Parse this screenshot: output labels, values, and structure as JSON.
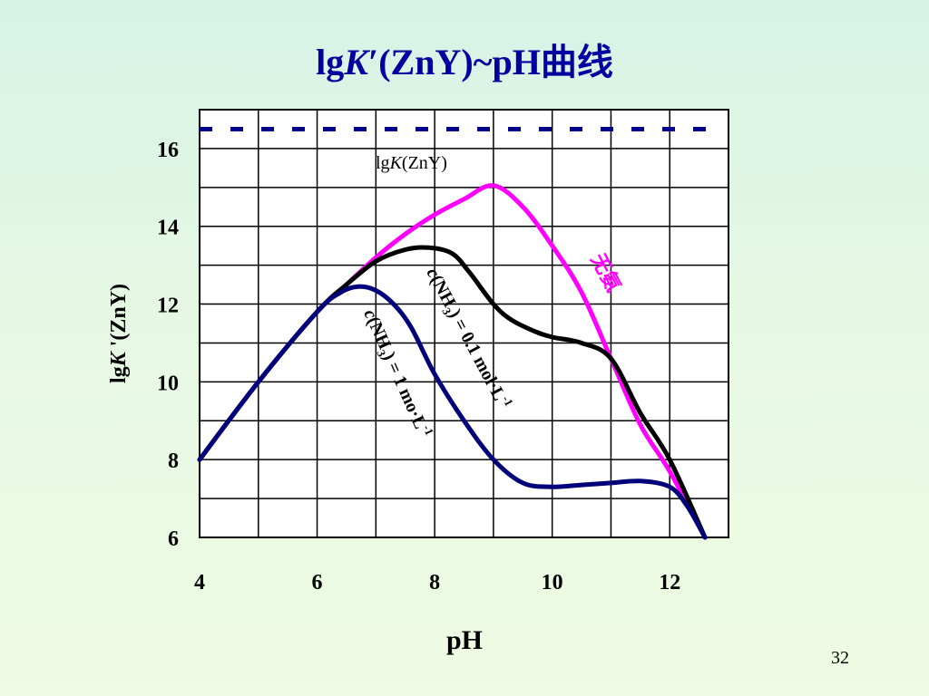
{
  "slide": {
    "title_prefix": "lg",
    "title_k": "K",
    "title_prime": "′",
    "title_suffix": "(ZnY)~pH曲线",
    "page_number": "32"
  },
  "chart_data": {
    "type": "line",
    "title": "lgK′(ZnY)~pH曲线",
    "xlabel": "pH",
    "ylabel": "lgK '(ZnY)",
    "xlim": [
      4,
      13
    ],
    "ylim": [
      6,
      17
    ],
    "x_ticks": [
      "4",
      "6",
      "8",
      "10",
      "12"
    ],
    "y_ticks": [
      "6",
      "8",
      "10",
      "12",
      "14",
      "16"
    ],
    "grid": true,
    "reference_line": {
      "label": "lgK(ZnY)",
      "y": 16.5,
      "style": "dashed",
      "color": "#00008b"
    },
    "series": [
      {
        "name": "无氨",
        "color": "#ff00ff",
        "x": [
          4.0,
          5.0,
          6.0,
          6.5,
          7.0,
          7.5,
          8.0,
          8.5,
          9.0,
          9.5,
          10.0,
          10.5,
          11.0,
          11.5,
          12.0,
          12.6
        ],
        "y": [
          8.0,
          10.0,
          11.8,
          12.5,
          13.2,
          13.8,
          14.3,
          14.7,
          15.05,
          14.5,
          13.5,
          12.3,
          10.6,
          8.9,
          7.7,
          6.0
        ]
      },
      {
        "name": "c(NH3) = 0.1 mol·L-1",
        "color": "#000000",
        "x": [
          4.0,
          5.0,
          6.0,
          6.5,
          7.0,
          7.5,
          7.9,
          8.3,
          8.6,
          9.0,
          9.3,
          9.7,
          10.0,
          10.5,
          11.0,
          11.5,
          12.0,
          12.6
        ],
        "y": [
          8.0,
          10.0,
          11.8,
          12.5,
          13.1,
          13.4,
          13.45,
          13.3,
          12.8,
          12.0,
          11.6,
          11.3,
          11.15,
          11.0,
          10.6,
          9.2,
          8.0,
          6.0
        ]
      },
      {
        "name": "c(NH3) = 1 mo·L-1",
        "color": "#00007a",
        "x": [
          4.0,
          5.0,
          6.0,
          6.4,
          6.7,
          7.0,
          7.3,
          7.6,
          8.0,
          8.5,
          9.0,
          9.5,
          10.0,
          10.5,
          11.0,
          11.5,
          12.0,
          12.3,
          12.6
        ],
        "y": [
          8.0,
          10.0,
          11.8,
          12.3,
          12.45,
          12.35,
          12.0,
          11.4,
          10.2,
          9.0,
          8.0,
          7.4,
          7.3,
          7.35,
          7.4,
          7.45,
          7.3,
          6.8,
          6.0
        ]
      }
    ],
    "annotations": {
      "ref_label": "lgK(ZnY)",
      "magenta_label": "无氨",
      "black_label": "c(NH3) = 0.1 mol·L-1",
      "blue_label": "c(NH3) = 1 mo·L-1"
    }
  }
}
